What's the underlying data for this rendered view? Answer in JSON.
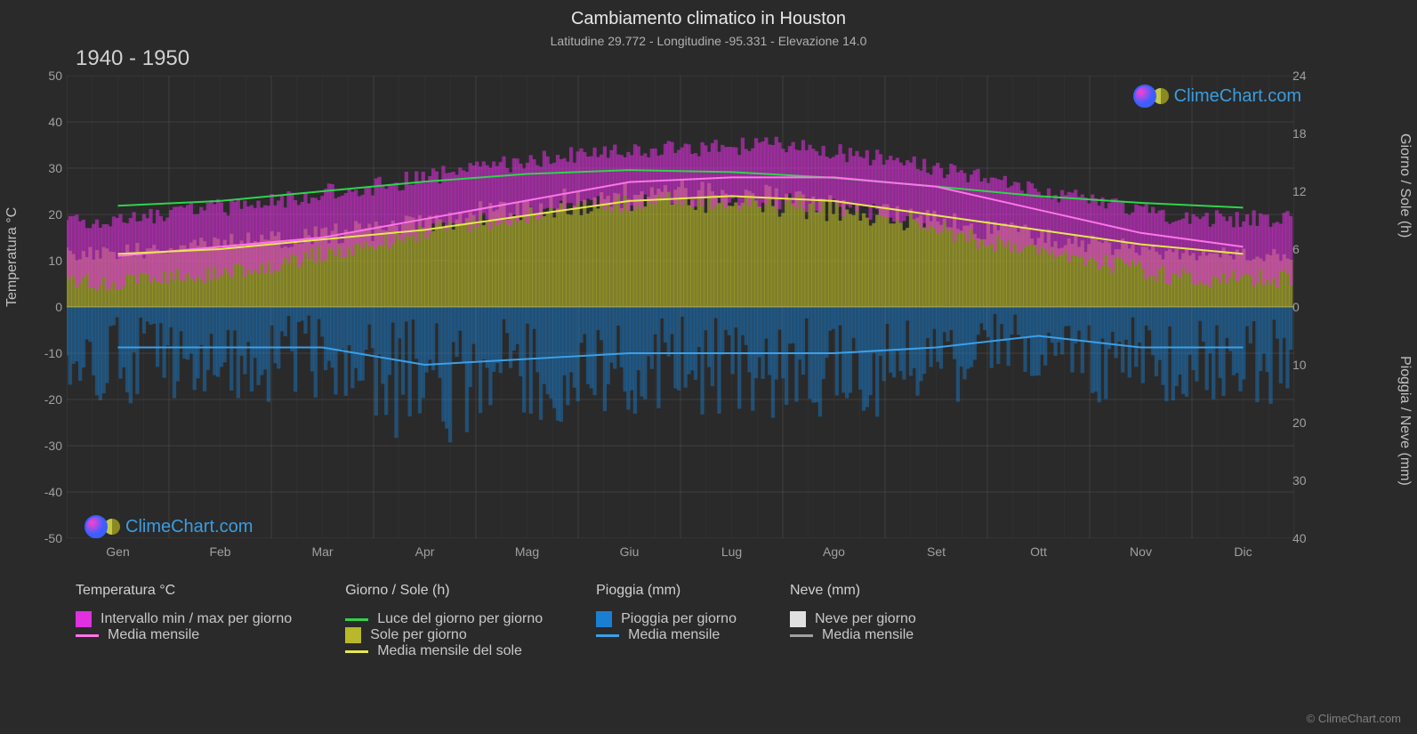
{
  "title": "Cambiamento climatico in Houston",
  "subtitle": "Latitudine 29.772 - Longitudine -95.331 - Elevazione 14.0",
  "year_range": "1940 - 1950",
  "watermark_text": "ClimeChart.com",
  "copyright": "© ClimeChart.com",
  "background_color": "#2a2a2a",
  "grid_color": "#555555",
  "text_color": "#d0d0d0",
  "y_axis_left": {
    "label": "Temperatura °C",
    "min": -50,
    "max": 50,
    "step": 10,
    "ticks": [
      50,
      40,
      30,
      20,
      10,
      0,
      -10,
      -20,
      -30,
      -40,
      -50
    ]
  },
  "y_axis_right_top": {
    "label": "Giorno / Sole (h)",
    "min": 0,
    "max": 24,
    "step": 6,
    "ticks": [
      24,
      18,
      12,
      6,
      0
    ]
  },
  "y_axis_right_bottom": {
    "label": "Pioggia / Neve (mm)",
    "min": 0,
    "max": 40,
    "step": 10,
    "ticks": [
      0,
      10,
      20,
      30,
      40
    ]
  },
  "x_axis": {
    "labels": [
      "Gen",
      "Feb",
      "Mar",
      "Apr",
      "Mag",
      "Giu",
      "Lug",
      "Ago",
      "Set",
      "Ott",
      "Nov",
      "Dic"
    ]
  },
  "series": {
    "temp_range": {
      "color": "#e030e0",
      "opacity": 0.55,
      "min": [
        5,
        6,
        9,
        14,
        18,
        22,
        23,
        23,
        20,
        14,
        10,
        6
      ],
      "max": [
        18,
        20,
        23,
        26,
        30,
        33,
        34,
        35,
        32,
        28,
        23,
        19
      ]
    },
    "temp_mean": {
      "color": "#ff74ea",
      "width": 2,
      "values": [
        11,
        13,
        15,
        19,
        23,
        27,
        28,
        28,
        26,
        21,
        16,
        13
      ]
    },
    "daylight": {
      "color": "#2fd44b",
      "width": 2,
      "values_hours": [
        10.5,
        11.0,
        12.0,
        13.0,
        13.8,
        14.2,
        14.0,
        13.4,
        12.5,
        11.5,
        10.8,
        10.3
      ]
    },
    "sunshine_fill": {
      "color": "#b8b82a",
      "opacity": 0.6,
      "values_hours": [
        5.5,
        6.0,
        7.0,
        8.0,
        9.5,
        11.0,
        11.5,
        11.0,
        9.5,
        8.0,
        6.5,
        5.5
      ]
    },
    "sunshine_mean": {
      "color": "#e6e650",
      "width": 2,
      "values_hours": [
        5.5,
        6.0,
        7.0,
        8.0,
        9.5,
        11.0,
        11.5,
        11.0,
        9.5,
        8.0,
        6.5,
        5.5
      ]
    },
    "rain_daily": {
      "color": "#1a7fd0",
      "opacity": 0.45,
      "max_mm": 40
    },
    "rain_mean": {
      "color": "#3ba0e8",
      "width": 2,
      "values_mm": [
        7,
        7,
        7,
        10,
        9,
        8,
        8,
        8,
        7,
        5,
        7,
        7
      ]
    },
    "snow_daily": {
      "color": "#e0e0e0"
    },
    "snow_mean": {
      "color": "#a0a0a0"
    }
  },
  "legend": {
    "col1": {
      "header": "Temperatura °C",
      "items": [
        {
          "swatch_type": "box",
          "color": "#e030e0",
          "label": "Intervallo min / max per giorno"
        },
        {
          "swatch_type": "line",
          "color": "#ff74ea",
          "label": "Media mensile"
        }
      ]
    },
    "col2": {
      "header": "Giorno / Sole (h)",
      "items": [
        {
          "swatch_type": "line",
          "color": "#2fd44b",
          "label": "Luce del giorno per giorno"
        },
        {
          "swatch_type": "box",
          "color": "#b8b82a",
          "label": "Sole per giorno"
        },
        {
          "swatch_type": "line",
          "color": "#e6e650",
          "label": "Media mensile del sole"
        }
      ]
    },
    "col3": {
      "header": "Pioggia (mm)",
      "items": [
        {
          "swatch_type": "box",
          "color": "#1a7fd0",
          "label": "Pioggia per giorno"
        },
        {
          "swatch_type": "line",
          "color": "#3ba0e8",
          "label": "Media mensile"
        }
      ]
    },
    "col4": {
      "header": "Neve (mm)",
      "items": [
        {
          "swatch_type": "box",
          "color": "#e0e0e0",
          "label": "Neve per giorno"
        },
        {
          "swatch_type": "line",
          "color": "#a0a0a0",
          "label": "Media mensile"
        }
      ]
    }
  }
}
